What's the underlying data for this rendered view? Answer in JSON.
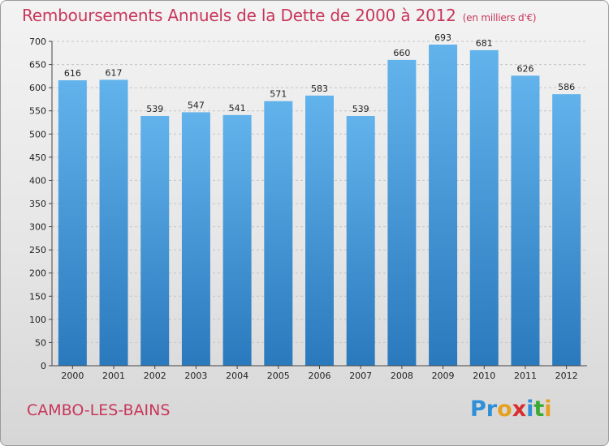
{
  "title": "Remboursements Annuels de la Dette de 2000 à 2012",
  "unit_note": "(en milliers d'€)",
  "commune": "CAMBO-LES-BAINS",
  "logo": {
    "letters": [
      "P",
      "r",
      "o",
      "x",
      "i",
      "t",
      "i"
    ],
    "colors": [
      "#2f8fd8",
      "#2f8fd8",
      "#e8a022",
      "#d62f2f",
      "#2f8fd8",
      "#3aaa35",
      "#e8a022"
    ]
  },
  "colors": {
    "title": "#c8365a",
    "bar_top": "#62b3ec",
    "bar_bottom": "#2a79bd",
    "grid": "#c4c4c4"
  },
  "chart_data": {
    "type": "bar",
    "title": "Remboursements Annuels de la Dette de 2000 à 2012",
    "categories": [
      "2000",
      "2001",
      "2002",
      "2003",
      "2004",
      "2005",
      "2006",
      "2007",
      "2008",
      "2009",
      "2010",
      "2011",
      "2012"
    ],
    "values": [
      616,
      617,
      539,
      547,
      541,
      571,
      583,
      539,
      660,
      693,
      681,
      626,
      586
    ],
    "ylim": [
      0,
      700
    ],
    "yticks": [
      0,
      50,
      100,
      150,
      200,
      250,
      300,
      350,
      400,
      450,
      500,
      550,
      600,
      650,
      700
    ],
    "grid": true,
    "grid_style": "dashed",
    "xlabel": "",
    "ylabel": ""
  }
}
